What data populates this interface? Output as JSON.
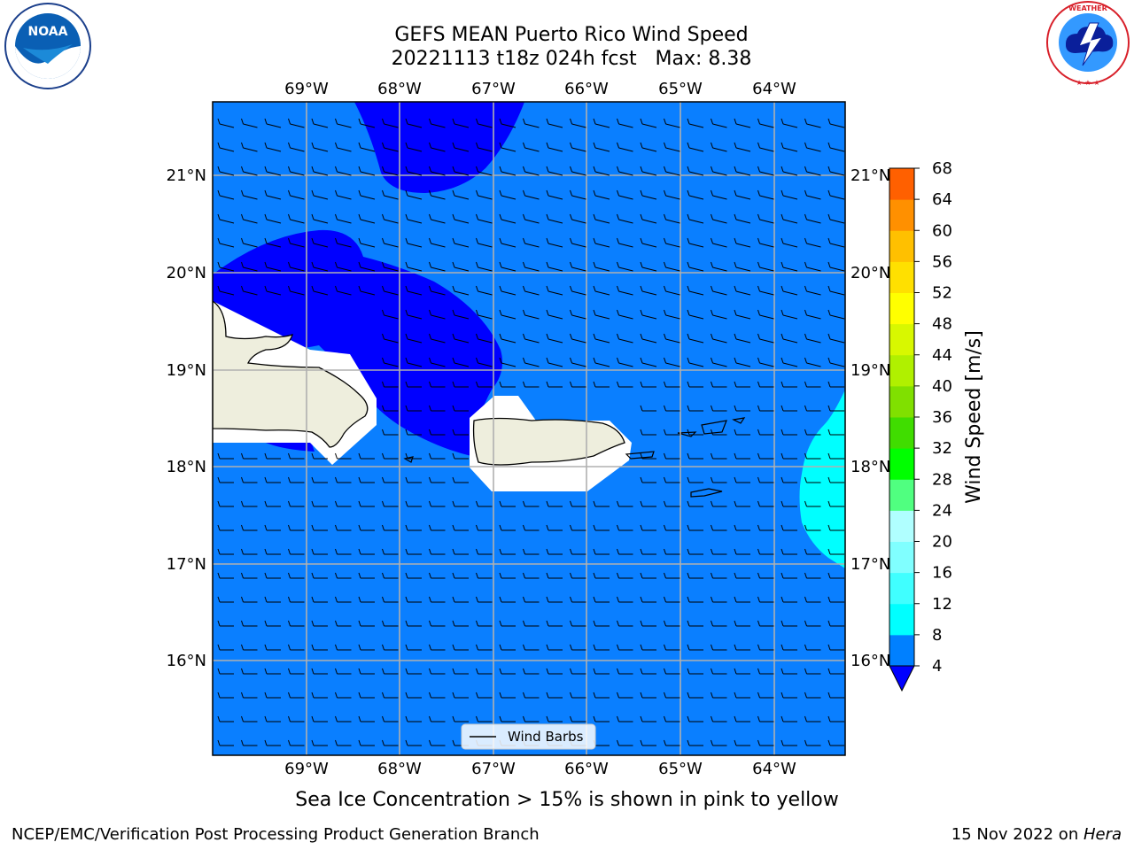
{
  "header": {
    "title_line1": "GEFS MEAN Puerto Rico Wind Speed",
    "title_line2": "20221113 t18z 024h fcst   Max: 8.38"
  },
  "note": "Sea Ice Concentration > 15% is shown in pink to yellow",
  "footer": {
    "left": "NCEP/EMC/Verification Post Processing Product Generation Branch",
    "date": "15 Nov 2022 on ",
    "machine": "Hera"
  },
  "logos": {
    "left": "NOAA",
    "right": "NATIONAL WEATHER SERVICE"
  },
  "map": {
    "lon_labels": [
      "69°W",
      "68°W",
      "67°W",
      "66°W",
      "65°W",
      "64°W"
    ],
    "lat_labels": [
      "21°N",
      "20°N",
      "19°N",
      "18°N",
      "17°N",
      "16°N"
    ],
    "legend_label": "Wind Barbs",
    "land_color": "#eeeedd",
    "ocean_base_color": "#0a7fff"
  },
  "colorbar": {
    "label": "Wind Speed [m/s]",
    "ticks": [
      "4",
      "8",
      "12",
      "16",
      "20",
      "24",
      "28",
      "32",
      "36",
      "40",
      "44",
      "48",
      "52",
      "56",
      "60",
      "64",
      "68"
    ],
    "colors": [
      "#0080ff",
      "#00ffff",
      "#40ffff",
      "#80ffff",
      "#b0ffff",
      "#50ff80",
      "#00ff00",
      "#40dd00",
      "#80e000",
      "#b0f000",
      "#d8f800",
      "#ffff00",
      "#ffe000",
      "#ffc000",
      "#ff9000",
      "#ff6000",
      "#ff4000",
      "#ff0000"
    ],
    "under_color": "#0000ff"
  }
}
